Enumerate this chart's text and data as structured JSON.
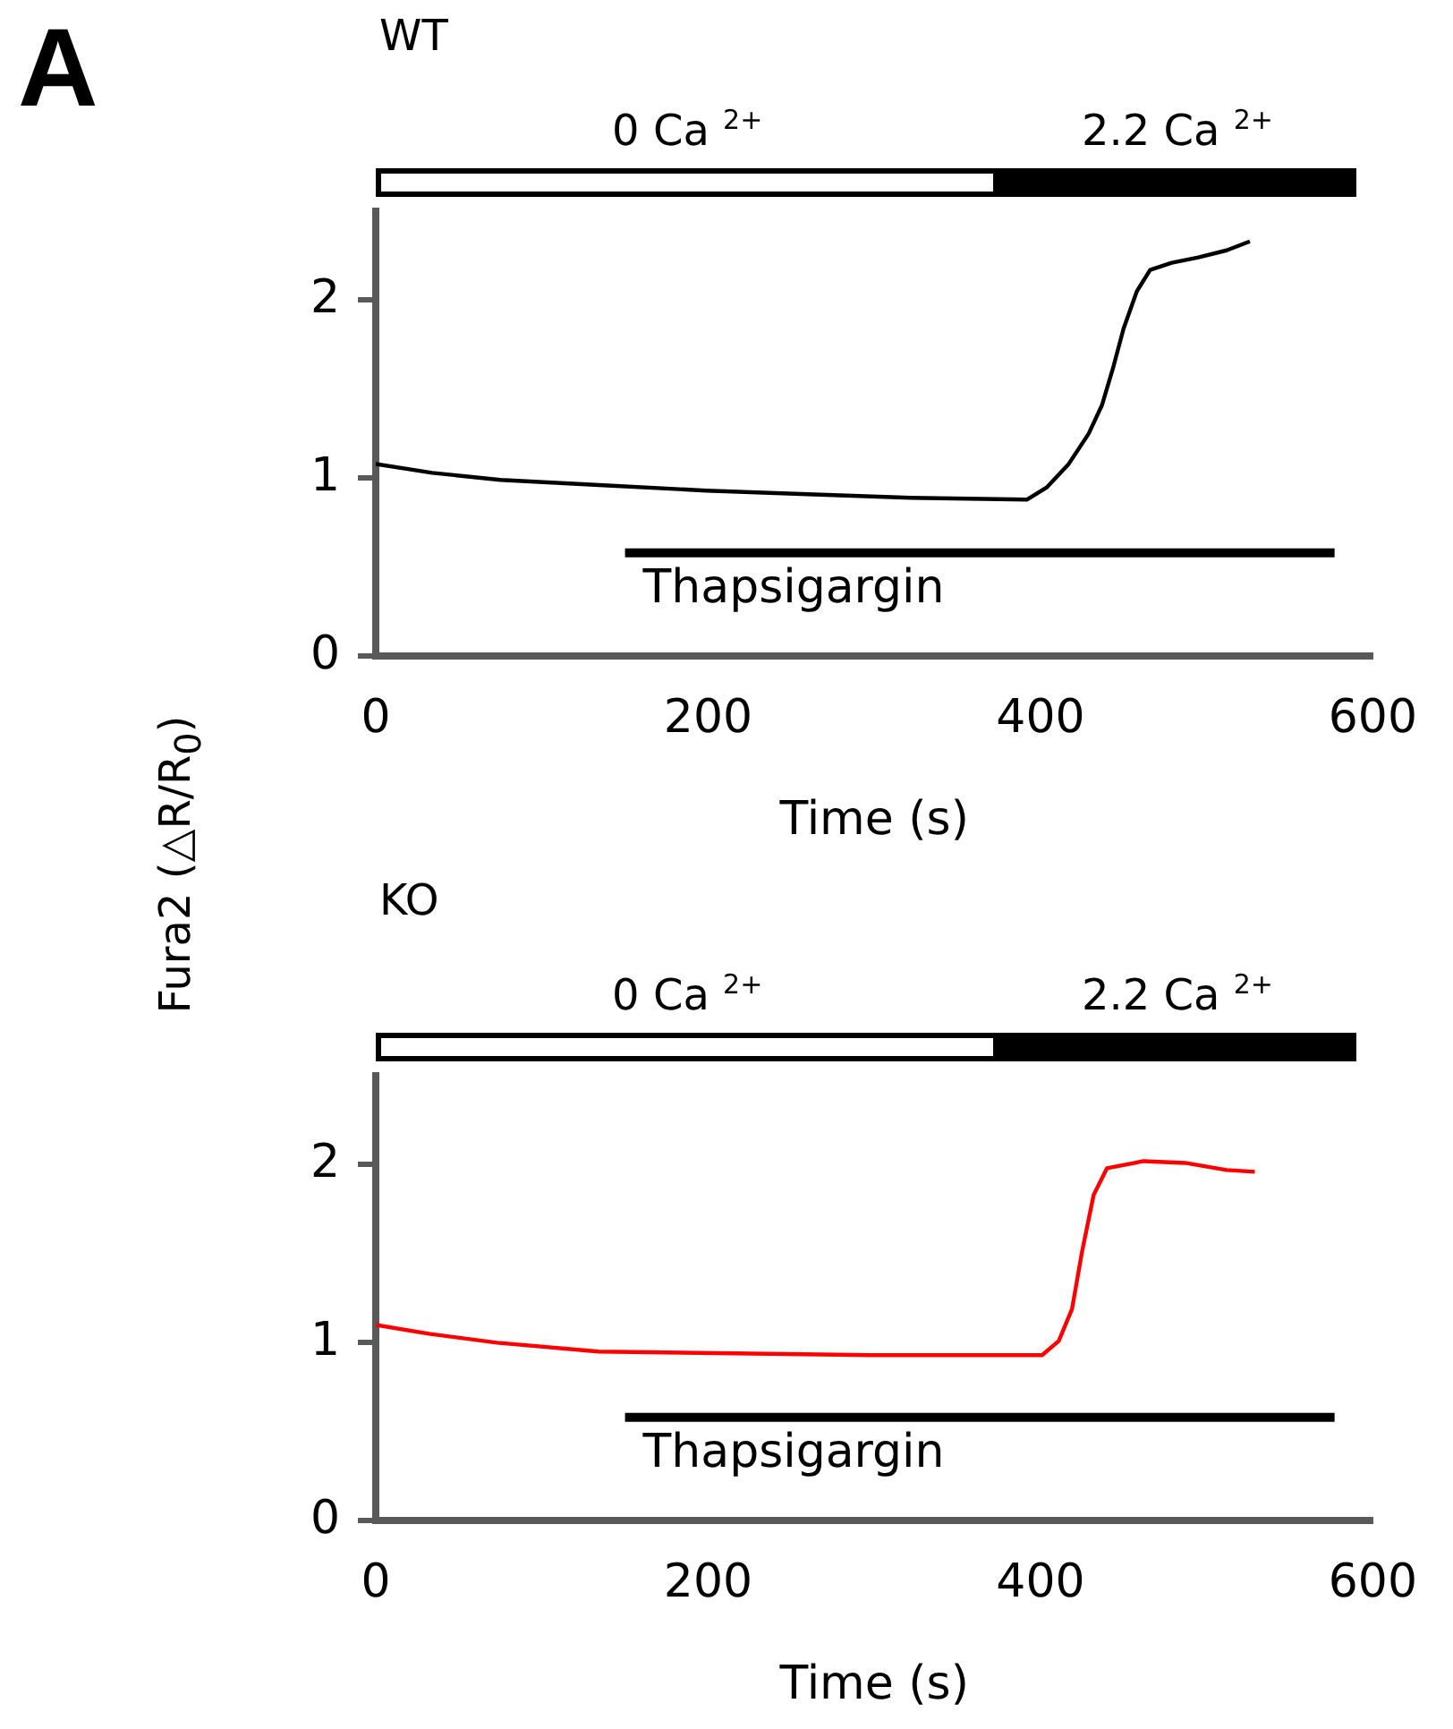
{
  "chart_data": [
    {
      "type": "line",
      "title": "WT",
      "xlabel": "Time (s)",
      "ylabel": "Fura2 (△R/R$_{0}$)",
      "annotations": [
        "A",
        "0 Ca $^{2+}$",
        "2.2 Ca $^{2+}$"
      ],
      "xlim": [
        0,
        600
      ],
      "xticks": [
        0,
        200,
        400,
        600
      ],
      "ylim": [
        0,
        2.5
      ],
      "yticks": [
        0,
        1,
        2
      ],
      "grid": false,
      "legend": false,
      "marker": "none",
      "line_style": "solid",
      "series": [
        {
          "color": "#000000",
          "x": [
            0,
            34,
            75,
            137,
            199,
            260,
            322,
            392,
            404,
            417,
            429,
            437,
            444,
            450,
            458,
            466,
            479,
            495,
            512,
            526
          ],
          "values": [
            1.08,
            1.03,
            0.99,
            0.96,
            0.93,
            0.91,
            0.89,
            0.88,
            0.95,
            1.08,
            1.25,
            1.41,
            1.63,
            1.84,
            2.05,
            2.17,
            2.21,
            2.24,
            2.28,
            2.33
          ]
        },
        {
          "name": "Thapsigargin",
          "color": "#000000",
          "x": [
            150,
            577
          ],
          "values": [
            0.58,
            0.58
          ]
        }
      ]
    },
    {
      "type": "line",
      "title": "KO",
      "xlabel": "Time (s)",
      "annotations": [
        "0 Ca $^{2+}$",
        "2.2 Ca $^{2+}$"
      ],
      "xlim": [
        0,
        600
      ],
      "xticks": [
        0,
        200,
        400,
        600
      ],
      "ylim": [
        0,
        2.5
      ],
      "yticks": [
        0,
        1,
        2
      ],
      "grid": false,
      "legend": false,
      "marker": "none",
      "line_style": "solid",
      "series": [
        {
          "color": "#ff0000",
          "x": [
            0,
            32,
            73,
            134,
            216,
            298,
            401,
            411,
            419,
            425,
            432,
            440,
            462,
            487,
            512,
            529
          ],
          "values": [
            1.1,
            1.05,
            1.0,
            0.95,
            0.94,
            0.93,
            0.93,
            1.01,
            1.19,
            1.51,
            1.83,
            1.98,
            2.02,
            2.01,
            1.97,
            1.96
          ]
        },
        {
          "name": "Thapsigargin",
          "color": "#000000",
          "x": [
            150,
            577
          ],
          "values": [
            0.58,
            0.58
          ]
        }
      ]
    }
  ]
}
